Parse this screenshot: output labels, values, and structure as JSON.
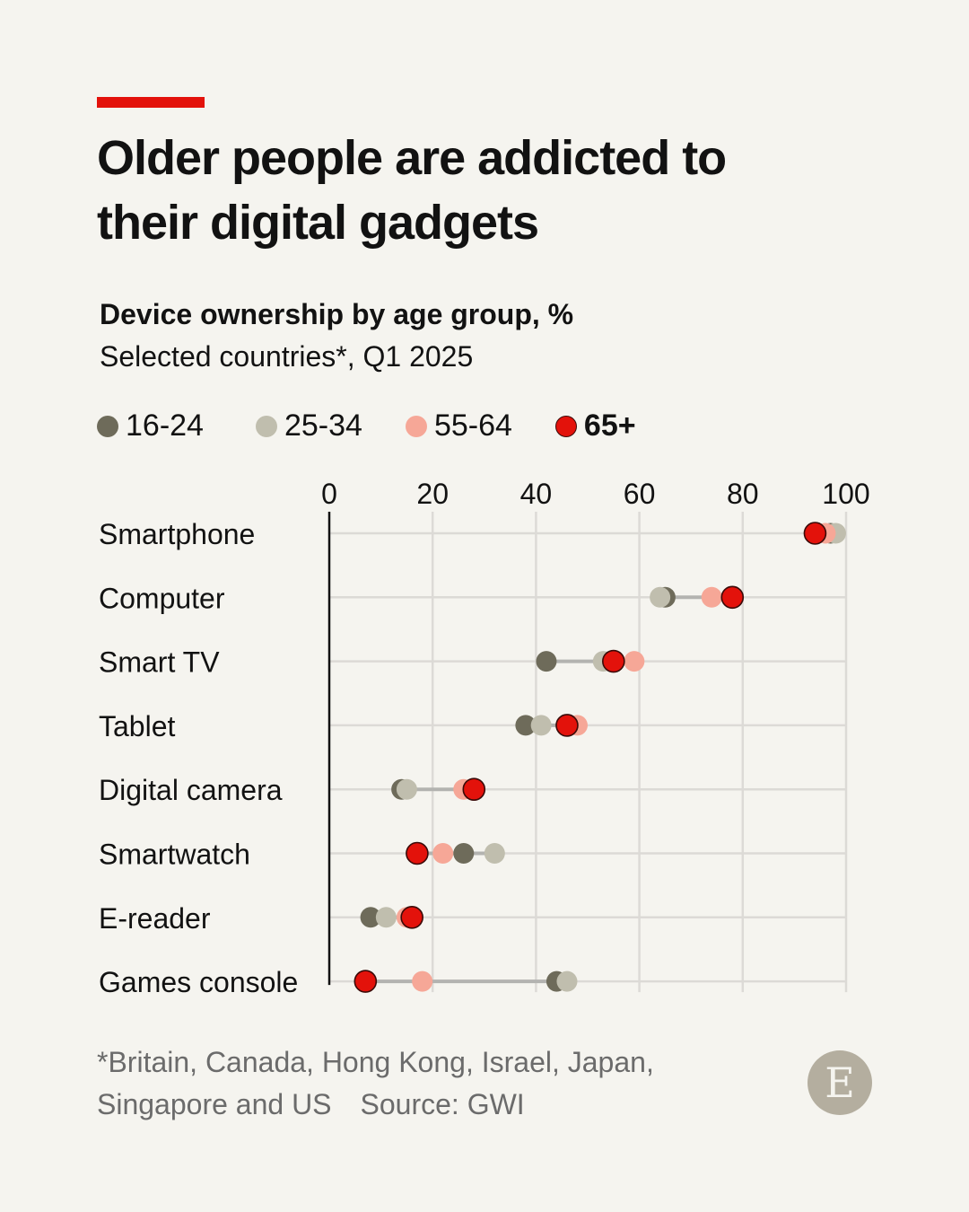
{
  "header": {
    "title": "Older people are addicted to their digital gadgets",
    "subtitle": "Device ownership by age group, %",
    "subtitle2": "Selected countries*, Q1 2025"
  },
  "footer": {
    "note": "*Britain, Canada, Hong Kong, Israel, Japan,",
    "note2": "Singapore and US",
    "source": "Source: GWI",
    "logo": "E"
  },
  "colors": {
    "16-24": "#6e6b5a",
    "25-34": "#c0beae",
    "55-64": "#f6a797",
    "65+": "#e3120b",
    "accent": "#e3120b"
  },
  "chart_data": {
    "type": "dot",
    "title": "Device ownership by age group, %",
    "xlim": [
      0,
      100
    ],
    "xticks": [
      "0",
      "20",
      "40",
      "60",
      "80",
      "100"
    ],
    "grid": true,
    "legend": "top",
    "categories": [
      "Smartphone",
      "Computer",
      "Smart TV",
      "Tablet",
      "Digital camera",
      "Smartwatch",
      "E-reader",
      "Games console"
    ],
    "series": [
      {
        "name": "16-24",
        "values": [
          97,
          65,
          42,
          38,
          14,
          26,
          8,
          44
        ]
      },
      {
        "name": "25-34",
        "values": [
          98,
          64,
          53,
          41,
          15,
          32,
          11,
          46
        ]
      },
      {
        "name": "55-64",
        "values": [
          96,
          74,
          59,
          48,
          26,
          22,
          15,
          18
        ]
      },
      {
        "name": "65+",
        "values": [
          94,
          78,
          55,
          46,
          28,
          17,
          16,
          7
        ]
      }
    ]
  }
}
